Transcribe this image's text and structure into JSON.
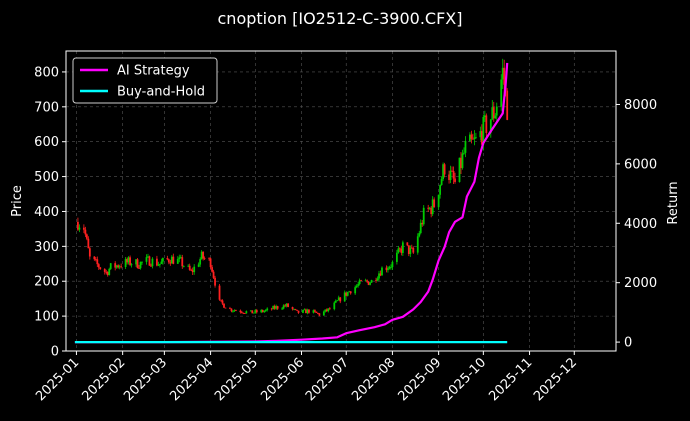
{
  "chart_data": {
    "type": "line",
    "title": "cnoption [IO2512-C-3900.CFX]",
    "xlabel": "",
    "ylabel_left": "Price",
    "ylabel_right": "Return",
    "x_ticks": [
      "2025-01",
      "2025-02",
      "2025-03",
      "2025-04",
      "2025-05",
      "2025-06",
      "2025-07",
      "2025-08",
      "2025-09",
      "2025-10",
      "2025-11",
      "2025-12"
    ],
    "xlim": [
      "2024-12-25",
      "2025-12-29"
    ],
    "ylim_left": [
      0,
      860
    ],
    "yticks_left": [
      0,
      100,
      200,
      300,
      400,
      500,
      600,
      700,
      800
    ],
    "ylim_right": [
      -300,
      9800
    ],
    "yticks_right": [
      0,
      2000,
      4000,
      6000,
      8000
    ],
    "grid": true,
    "legend_position": "top-left",
    "candle_up_color": "#00cc00",
    "candle_down_color": "#ff2020",
    "price_candles": {
      "note_type": "candlestick",
      "series": [
        {
          "date": "2025-01-02",
          "close": 370
        },
        {
          "date": "2025-01-06",
          "close": 355
        },
        {
          "date": "2025-01-08",
          "close": 310
        },
        {
          "date": "2025-01-10",
          "close": 265
        },
        {
          "date": "2025-01-14",
          "close": 250
        },
        {
          "date": "2025-01-17",
          "close": 240
        },
        {
          "date": "2025-01-21",
          "close": 225
        },
        {
          "date": "2025-01-24",
          "close": 240
        },
        {
          "date": "2025-02-05",
          "close": 255
        },
        {
          "date": "2025-02-12",
          "close": 250
        },
        {
          "date": "2025-02-19",
          "close": 260
        },
        {
          "date": "2025-02-26",
          "close": 250
        },
        {
          "date": "2025-03-05",
          "close": 265
        },
        {
          "date": "2025-03-12",
          "close": 255
        },
        {
          "date": "2025-03-19",
          "close": 225
        },
        {
          "date": "2025-03-26",
          "close": 270
        },
        {
          "date": "2025-04-01",
          "close": 255
        },
        {
          "date": "2025-04-07",
          "close": 140
        },
        {
          "date": "2025-04-14",
          "close": 120
        },
        {
          "date": "2025-04-21",
          "close": 115
        },
        {
          "date": "2025-04-28",
          "close": 110
        },
        {
          "date": "2025-05-08",
          "close": 115
        },
        {
          "date": "2025-05-15",
          "close": 125
        },
        {
          "date": "2025-05-22",
          "close": 130
        },
        {
          "date": "2025-05-29",
          "close": 110
        },
        {
          "date": "2025-06-06",
          "close": 115
        },
        {
          "date": "2025-06-13",
          "close": 105
        },
        {
          "date": "2025-06-20",
          "close": 120
        },
        {
          "date": "2025-06-27",
          "close": 150
        },
        {
          "date": "2025-07-04",
          "close": 175
        },
        {
          "date": "2025-07-11",
          "close": 195
        },
        {
          "date": "2025-07-18",
          "close": 200
        },
        {
          "date": "2025-07-25",
          "close": 235
        },
        {
          "date": "2025-08-01",
          "close": 250
        },
        {
          "date": "2025-08-08",
          "close": 300
        },
        {
          "date": "2025-08-15",
          "close": 280
        },
        {
          "date": "2025-08-22",
          "close": 390
        },
        {
          "date": "2025-08-29",
          "close": 420
        },
        {
          "date": "2025-09-05",
          "close": 530
        },
        {
          "date": "2025-09-12",
          "close": 480
        },
        {
          "date": "2025-09-19",
          "close": 580
        },
        {
          "date": "2025-09-26",
          "close": 600
        },
        {
          "date": "2025-10-09",
          "close": 690
        },
        {
          "date": "2025-10-14",
          "close": 800
        },
        {
          "date": "2025-10-17",
          "close": 700
        }
      ]
    },
    "series": [
      {
        "name": "AI Strategy",
        "color": "#ff00ff",
        "axis": "right",
        "x": [
          "2024-12-31",
          "2025-03-01",
          "2025-05-01",
          "2025-05-15",
          "2025-06-01",
          "2025-06-15",
          "2025-06-25",
          "2025-07-01",
          "2025-07-10",
          "2025-07-20",
          "2025-07-27",
          "2025-08-01",
          "2025-08-08",
          "2025-08-15",
          "2025-08-20",
          "2025-08-25",
          "2025-08-28",
          "2025-09-01",
          "2025-09-05",
          "2025-09-08",
          "2025-09-12",
          "2025-09-17",
          "2025-09-20",
          "2025-09-25",
          "2025-09-28",
          "2025-10-01",
          "2025-10-06",
          "2025-10-10",
          "2025-10-14",
          "2025-10-16",
          "2025-10-17"
        ],
        "y": [
          0,
          0,
          20,
          40,
          80,
          120,
          160,
          300,
          400,
          500,
          600,
          750,
          850,
          1100,
          1350,
          1700,
          2100,
          2750,
          3200,
          3700,
          4050,
          4200,
          4900,
          5400,
          6200,
          6700,
          7100,
          7400,
          7700,
          8700,
          9400
        ]
      },
      {
        "name": "Buy-and-Hold",
        "color": "#00ffff",
        "axis": "right",
        "x": [
          "2024-12-31",
          "2025-10-17"
        ],
        "y": [
          0,
          0
        ]
      }
    ]
  }
}
